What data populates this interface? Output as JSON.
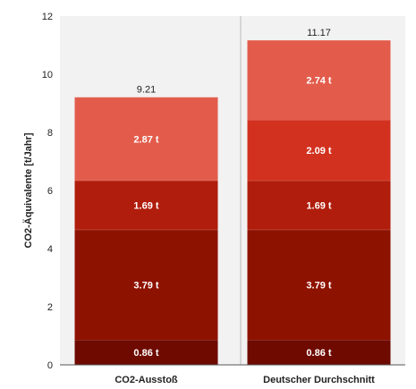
{
  "chart_data": {
    "type": "bar",
    "stacked": true,
    "categories": [
      "CO2-Ausstoß",
      "Deutscher Durchschnitt"
    ],
    "ylabel": "CO2-Äquivalente [t/Jahr]",
    "xlabel": "",
    "ylim": [
      0,
      12
    ],
    "yticks": [
      0,
      2,
      4,
      6,
      8,
      10,
      12
    ],
    "grid": false,
    "legend": "none",
    "series": [
      {
        "values": [
          0.86,
          0.86
        ],
        "labels": [
          "0.86 t",
          "0.86 t"
        ],
        "color": "#6e0a00"
      },
      {
        "values": [
          3.79,
          3.79
        ],
        "labels": [
          "3.79 t",
          "3.79 t"
        ],
        "color": "#8e1200"
      },
      {
        "values": [
          1.69,
          1.69
        ],
        "labels": [
          "1.69 t",
          "1.69 t"
        ],
        "color": "#b01d0c"
      },
      {
        "values": [
          0,
          2.09
        ],
        "labels": [
          "",
          "2.09 t"
        ],
        "color": "#d3311f"
      },
      {
        "values": [
          2.87,
          2.74
        ],
        "labels": [
          "2.87 t",
          "2.74 t"
        ],
        "color": "#e35c4b"
      }
    ],
    "totals": [
      "9.21",
      "11.17"
    ]
  },
  "colors": {
    "plot_background": "#f2f2f2",
    "axis": "#555555",
    "separator": "#bbbbbb"
  }
}
